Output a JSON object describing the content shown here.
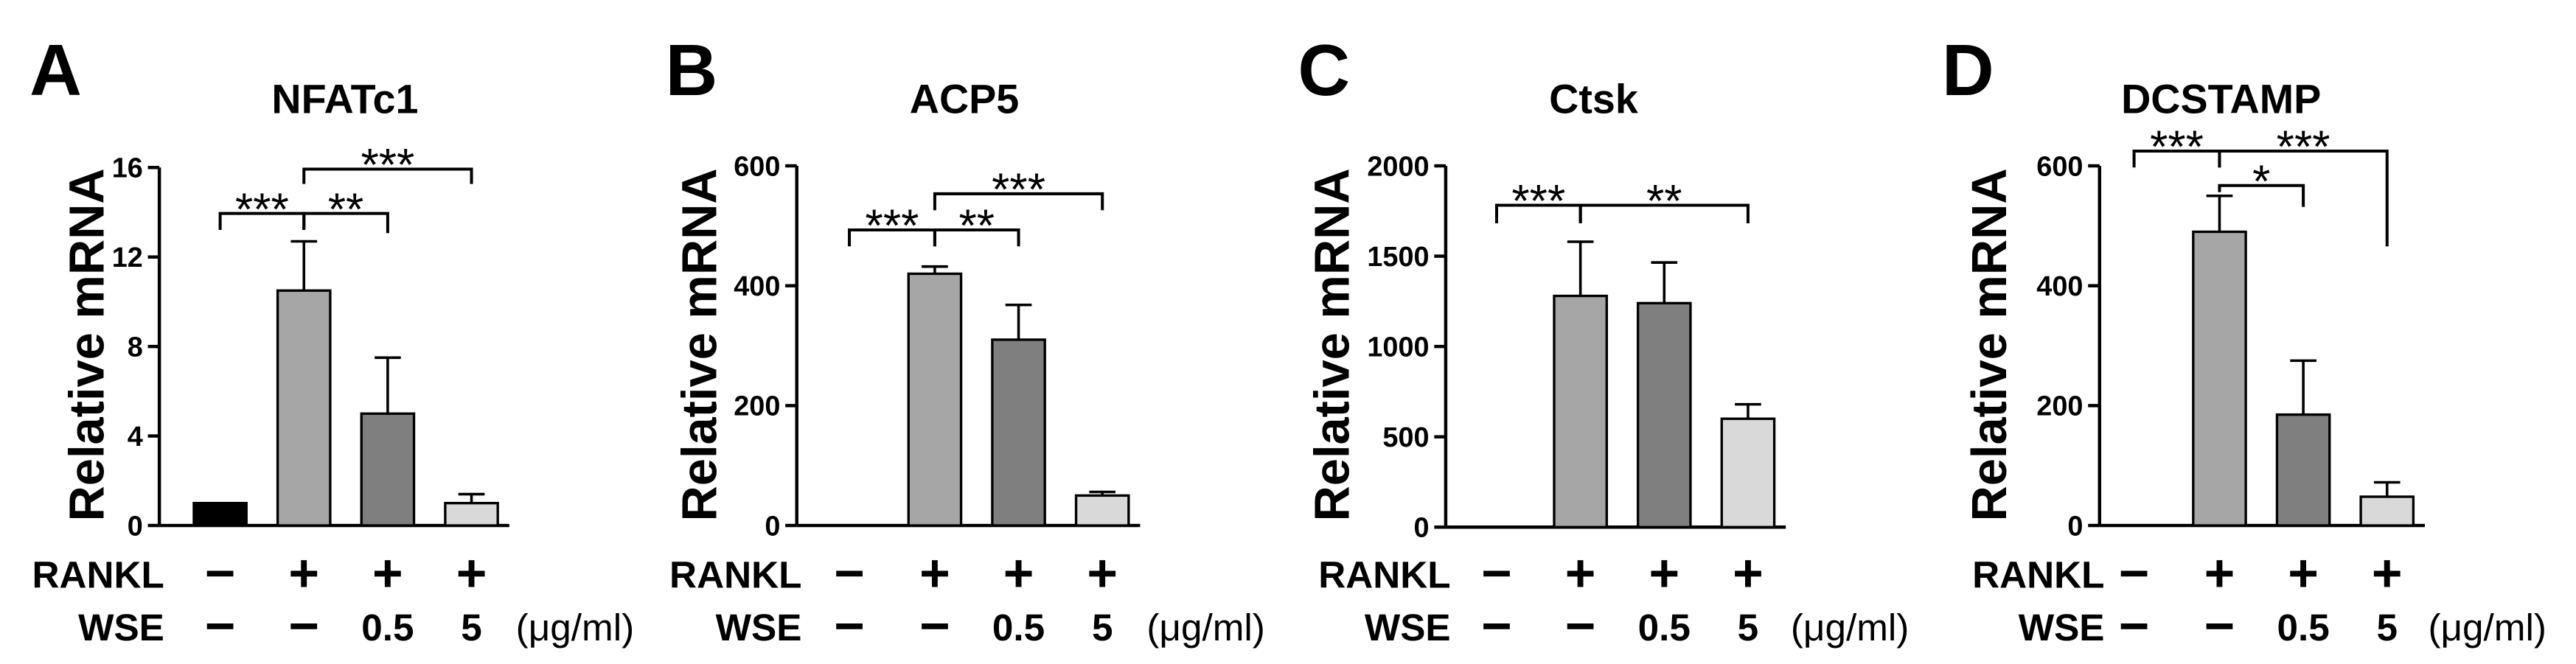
{
  "figure": {
    "bar_colors": [
      "#000000",
      "#a6a6a6",
      "#7f7f7f",
      "#d9d9d9"
    ]
  },
  "chart_data": [
    {
      "panel": "A",
      "type": "bar",
      "title": "NFATc1",
      "ylabel": "Relative mRNA",
      "ylim": [
        0,
        16
      ],
      "yticks": [
        0,
        4,
        8,
        12,
        16
      ],
      "values": [
        1,
        10.5,
        5,
        1
      ],
      "errors": [
        0,
        2.2,
        2.5,
        0.4
      ],
      "significance": [
        {
          "from": 0,
          "to": 1,
          "label": "***"
        },
        {
          "from": 1,
          "to": 2,
          "label": "**"
        },
        {
          "from": 1,
          "to": 3,
          "label": "***"
        }
      ],
      "conditions": [
        {
          "label": "RANKL",
          "values": [
            "−",
            "+",
            "+",
            "+"
          ]
        },
        {
          "label": "WSE",
          "values": [
            "−",
            "−",
            "0.5",
            "5"
          ],
          "unit": "(μg/ml)"
        }
      ]
    },
    {
      "panel": "B",
      "type": "bar",
      "title": "ACP5",
      "ylabel": "Relative mRNA",
      "ylim": [
        0,
        600
      ],
      "yticks": [
        0,
        200,
        400,
        600
      ],
      "values": [
        0,
        420,
        310,
        50
      ],
      "errors": [
        0,
        12,
        58,
        6
      ],
      "significance": [
        {
          "from": 0,
          "to": 1,
          "label": "***"
        },
        {
          "from": 1,
          "to": 2,
          "label": "**"
        },
        {
          "from": 1,
          "to": 3,
          "label": "***"
        }
      ],
      "conditions": [
        {
          "label": "RANKL",
          "values": [
            "−",
            "+",
            "+",
            "+"
          ]
        },
        {
          "label": "WSE",
          "values": [
            "−",
            "−",
            "0.5",
            "5"
          ],
          "unit": "(μg/ml)"
        }
      ]
    },
    {
      "panel": "C",
      "type": "bar",
      "title": "Ctsk",
      "ylabel": "Relative mRNA",
      "ylim": [
        0,
        2000
      ],
      "yticks": [
        0,
        500,
        1000,
        1500,
        2000
      ],
      "values": [
        0,
        1280,
        1240,
        600
      ],
      "errors": [
        0,
        300,
        225,
        80
      ],
      "significance": [
        {
          "from": 0,
          "to": 1,
          "label": "***"
        },
        {
          "from": 1,
          "to": 3,
          "label": "**"
        }
      ],
      "conditions": [
        {
          "label": "RANKL",
          "values": [
            "−",
            "+",
            "+",
            "+"
          ]
        },
        {
          "label": "WSE",
          "values": [
            "−",
            "−",
            "0.5",
            "5"
          ],
          "unit": "(μg/ml)"
        }
      ]
    },
    {
      "panel": "D",
      "type": "bar",
      "title": "DCSTAMP",
      "ylabel": "Relative mRNA",
      "ylim": [
        0,
        600
      ],
      "yticks": [
        0,
        200,
        400,
        600
      ],
      "values": [
        0,
        490,
        185,
        48
      ],
      "errors": [
        0,
        60,
        90,
        24
      ],
      "significance": [
        {
          "from": 0,
          "to": 1,
          "label": "***"
        },
        {
          "from": 1,
          "to": 2,
          "label": "*"
        },
        {
          "from": 1,
          "to": 3,
          "label": "***"
        }
      ],
      "conditions": [
        {
          "label": "RANKL",
          "values": [
            "−",
            "+",
            "+",
            "+"
          ]
        },
        {
          "label": "WSE",
          "values": [
            "−",
            "−",
            "0.5",
            "5"
          ],
          "unit": "(μg/ml)"
        }
      ]
    }
  ]
}
